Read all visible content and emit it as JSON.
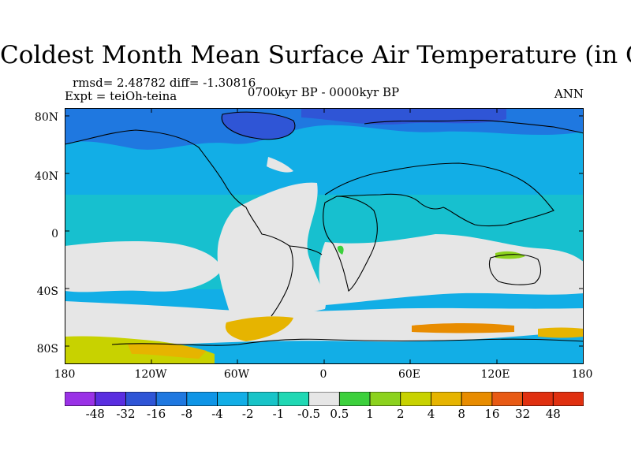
{
  "figure": {
    "title": "Coldest Month Mean Surface Air Temperature (in C)",
    "stats": "rmsd= 2.48782 diff= -1.30816",
    "experiment": "Expt = teiOh-teina",
    "period": "0700kyr BP - 0000kyr BP",
    "season": "ANN"
  },
  "map": {
    "projection": "cylindrical equidistant",
    "lat_labels": [
      "80N",
      "40N",
      "0",
      "40S",
      "80S"
    ],
    "lon_labels": [
      "180",
      "120W",
      "60W",
      "0",
      "60E",
      "120E",
      "180"
    ],
    "coastlines": "black"
  },
  "colorbar": {
    "labels": [
      "-48",
      "-32",
      "-16",
      "-8",
      "-4",
      "-2",
      "-1",
      "-0.5",
      "0.5",
      "1",
      "2",
      "4",
      "8",
      "16",
      "32",
      "48"
    ],
    "colors": [
      "#9a32e6",
      "#5a2ee0",
      "#2f55d6",
      "#1f78e0",
      "#0f95e6",
      "#12aee6",
      "#18c4c8",
      "#20d8b4",
      "#e6e6e6",
      "#3cd03c",
      "#8cd21e",
      "#c8d200",
      "#e6b400",
      "#e88c00",
      "#e85a14",
      "#e03010"
    ]
  }
}
